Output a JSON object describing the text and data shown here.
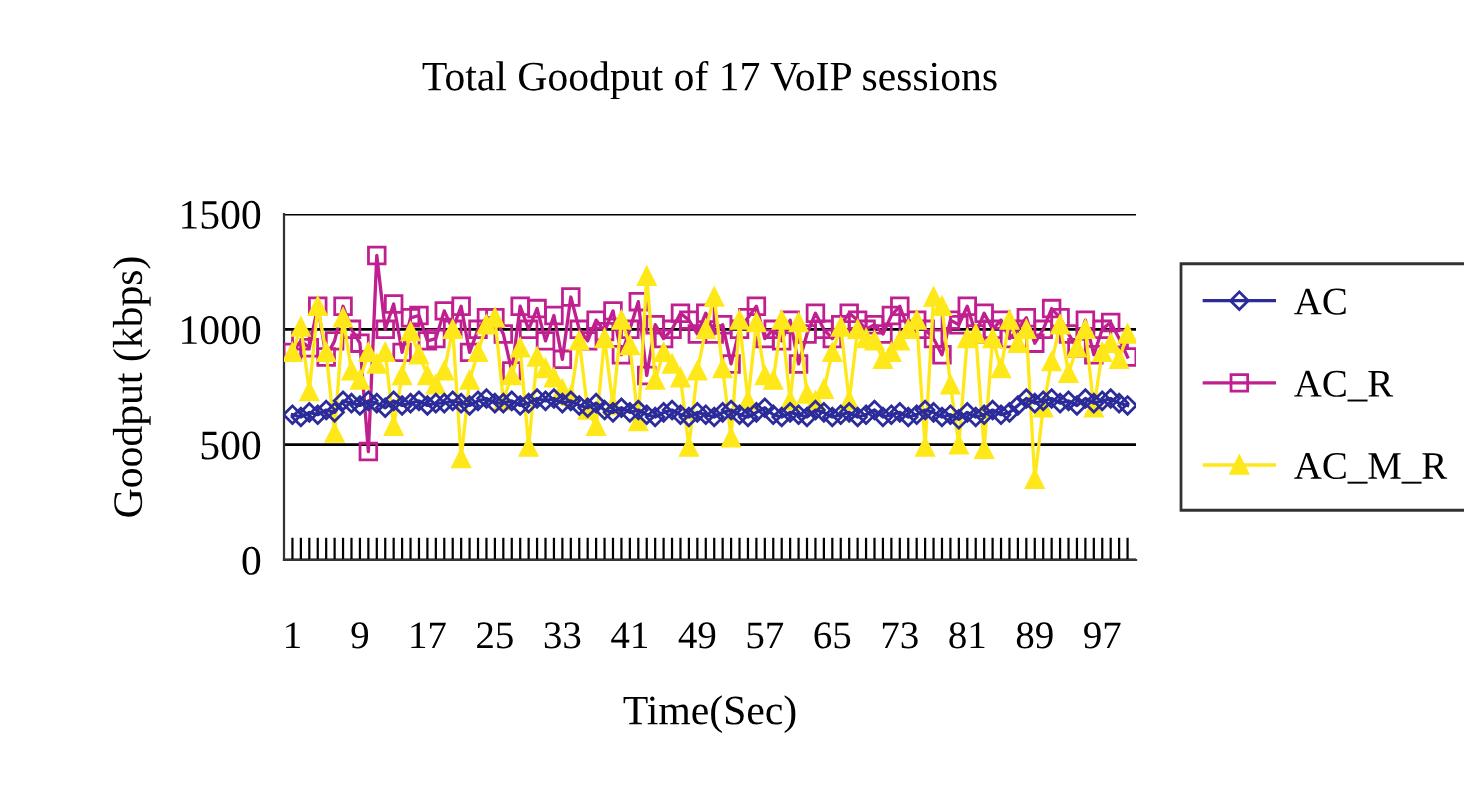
{
  "chart_data": {
    "type": "line",
    "title": "Total Goodput of 17 VoIP sessions",
    "xlabel": "Time(Sec)",
    "ylabel": "Goodput (kbps)",
    "categories": [
      "1",
      null,
      null,
      null,
      null,
      null,
      null,
      null,
      "9",
      null,
      null,
      null,
      null,
      null,
      null,
      null,
      "17",
      null,
      null,
      null,
      null,
      null,
      null,
      null,
      "25",
      null,
      null,
      null,
      null,
      null,
      null,
      null,
      "33",
      null,
      null,
      null,
      null,
      null,
      null,
      null,
      "41",
      null,
      null,
      null,
      null,
      null,
      null,
      null,
      "49",
      null,
      null,
      null,
      null,
      null,
      null,
      null,
      "57",
      null,
      null,
      null,
      null,
      null,
      null,
      null,
      "65",
      null,
      null,
      null,
      null,
      null,
      null,
      null,
      "73",
      null,
      null,
      null,
      null,
      null,
      null,
      null,
      "81",
      null,
      null,
      null,
      null,
      null,
      null,
      null,
      "89",
      null,
      null,
      null,
      null,
      null,
      null,
      null,
      "97",
      null,
      null,
      null
    ],
    "series": [
      {
        "name": "AC",
        "color": "#2b2b9a",
        "marker": "diamond",
        "values": [
          630,
          620,
          640,
          630,
          650,
          640,
          690,
          680,
          670,
          690,
          680,
          660,
          690,
          670,
          680,
          690,
          670,
          680,
          680,
          690,
          680,
          670,
          690,
          700,
          680,
          680,
          690,
          670,
          680,
          700,
          690,
          700,
          680,
          690,
          670,
          660,
          680,
          650,
          640,
          660,
          640,
          650,
          630,
          620,
          640,
          650,
          630,
          620,
          640,
          630,
          620,
          640,
          650,
          630,
          620,
          640,
          660,
          630,
          620,
          640,
          630,
          620,
          650,
          640,
          620,
          630,
          640,
          620,
          630,
          650,
          620,
          630,
          640,
          620,
          630,
          650,
          640,
          620,
          630,
          610,
          640,
          620,
          630,
          650,
          630,
          640,
          670,
          700,
          680,
          690,
          700,
          680,
          690,
          670,
          700,
          680,
          690,
          700,
          680,
          670
        ]
      },
      {
        "name": "AC_R",
        "color": "#c0208f",
        "marker": "square",
        "values": [
          900,
          950,
          920,
          1100,
          880,
          950,
          1100,
          1000,
          940,
          470,
          1320,
          1000,
          1110,
          900,
          1050,
          1060,
          950,
          960,
          1080,
          1000,
          1100,
          900,
          1000,
          1050,
          1050,
          980,
          820,
          1100,
          1000,
          1090,
          950,
          1060,
          870,
          1140,
          1000,
          950,
          1040,
          990,
          1080,
          890,
          1000,
          1120,
          800,
          1020,
          960,
          1000,
          1070,
          1040,
          980,
          1070,
          980,
          1020,
          850,
          1000,
          1050,
          1100,
          960,
          1000,
          950,
          1040,
          850,
          980,
          1070,
          1000,
          960,
          1020,
          1070,
          1040,
          1000,
          1020,
          980,
          1060,
          1100,
          1000,
          1040,
          1000,
          960,
          890,
          1040,
          1020,
          1100,
          980,
          1070,
          1000,
          1040,
          960,
          1000,
          1050,
          940,
          1000,
          1090,
          1050,
          980,
          920,
          1040,
          890,
          1000,
          1030,
          960,
          880
        ]
      },
      {
        "name": "AC_M_R",
        "color": "#ffe81a",
        "marker": "triangle",
        "values": [
          900,
          1010,
          730,
          1100,
          900,
          550,
          1050,
          820,
          780,
          900,
          850,
          900,
          580,
          800,
          990,
          890,
          800,
          760,
          820,
          1000,
          440,
          780,
          900,
          1020,
          1050,
          690,
          800,
          920,
          490,
          880,
          830,
          790,
          740,
          710,
          950,
          650,
          580,
          960,
          670,
          1040,
          930,
          600,
          1230,
          780,
          900,
          850,
          790,
          490,
          820,
          1000,
          1140,
          830,
          530,
          1040,
          690,
          1030,
          800,
          780,
          1040,
          690,
          1030,
          720,
          690,
          740,
          900,
          1010,
          690,
          1000,
          960,
          950,
          870,
          900,
          950,
          1000,
          1040,
          490,
          1140,
          1100,
          760,
          500,
          960,
          980,
          480,
          960,
          830,
          1040,
          940,
          1000,
          350,
          660,
          860,
          1020,
          810,
          920,
          1000,
          660,
          900,
          940,
          870,
          980
        ]
      }
    ],
    "ylim": [
      0,
      1500
    ],
    "yticks": [
      0,
      500,
      1000,
      1500
    ],
    "grid": "y",
    "legend": "right",
    "line_style": "solid"
  }
}
